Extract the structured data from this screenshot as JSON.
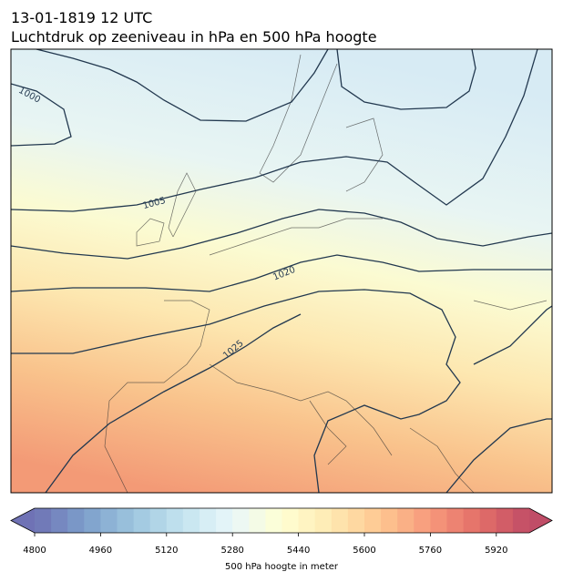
{
  "header": {
    "title": "13-01-1819 12 UTC",
    "subtitle": "Luchtdruk op zeeniveau in hPa en 500 hPa hoogte"
  },
  "map": {
    "contour_labels": [
      "1000",
      "1005",
      "1020",
      "1025"
    ]
  },
  "colorbar": {
    "label": "500 hPa hoogte in meter",
    "lim": [
      4800,
      6000
    ],
    "ticks": [
      4800,
      4960,
      5120,
      5280,
      5440,
      5600,
      5760,
      5920
    ]
  }
}
